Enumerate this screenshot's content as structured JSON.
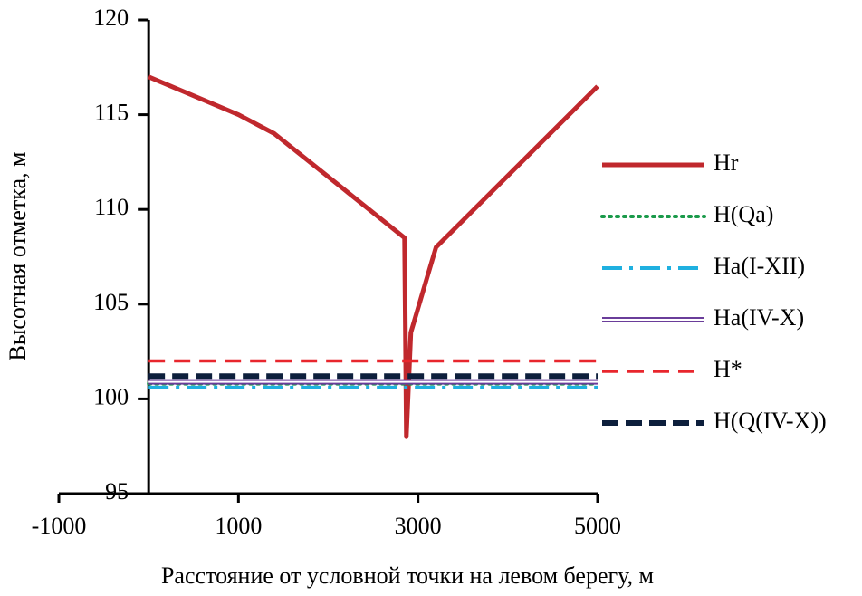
{
  "chart_data": {
    "type": "line",
    "xlabel": "Расстояние от условной точки на левом берегу, м",
    "ylabel": "Высотная отметка, м",
    "xlim": [
      -1000,
      5000
    ],
    "xticks": [
      -1000,
      1000,
      3000,
      5000
    ],
    "ylim": [
      95,
      120
    ],
    "yticks": [
      95,
      100,
      105,
      110,
      115,
      120
    ],
    "legend": "right",
    "series": [
      {
        "name": "Hr",
        "color": "#c0282d",
        "style": "solid",
        "x": [
          0,
          1000,
          1400,
          2850,
          2870,
          2920,
          3200,
          5000
        ],
        "values": [
          117,
          115,
          114,
          108.5,
          98,
          103.5,
          108,
          116.5
        ]
      },
      {
        "name": "H(Qa)",
        "color": "#1a9a4a",
        "style": "dotted",
        "x": [
          0,
          5000
        ],
        "values": [
          100.8,
          100.8
        ]
      },
      {
        "name": "Ha(I-XII)",
        "color": "#1fb0e0",
        "style": "dashdot",
        "x": [
          0,
          5000
        ],
        "values": [
          100.6,
          100.6
        ]
      },
      {
        "name": "Ha(IV-X)",
        "color": "#6a3d9a",
        "style": "double",
        "x": [
          0,
          5000
        ],
        "values": [
          100.9,
          100.9
        ]
      },
      {
        "name": "H*",
        "color": "#e8262d",
        "style": "dashed",
        "x": [
          0,
          5000
        ],
        "values": [
          102,
          102
        ]
      },
      {
        "name": "H(Q(IV-X))",
        "color": "#0d1f3c",
        "style": "thickdashed",
        "x": [
          0,
          5000
        ],
        "values": [
          101.2,
          101.2
        ]
      }
    ]
  }
}
